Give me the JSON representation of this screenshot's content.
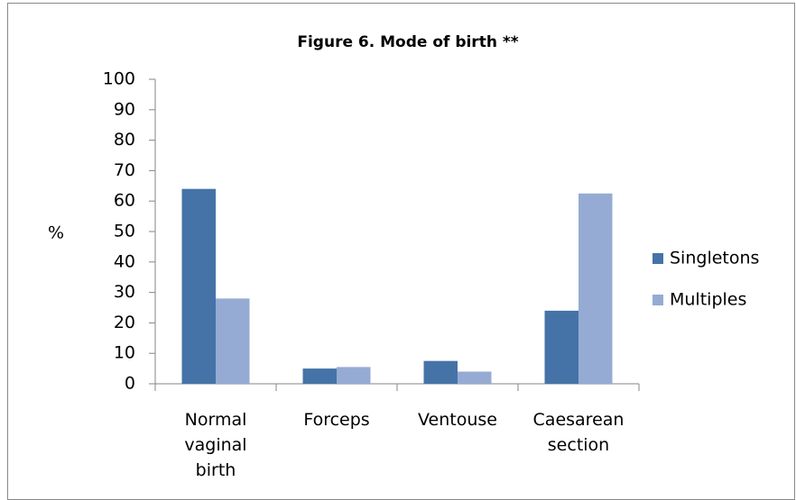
{
  "chart_data": {
    "type": "bar",
    "title": "Figure 6. Mode of birth **",
    "y_label": "%",
    "categories": [
      "Normal vaginal birth",
      "Forceps",
      "Ventouse",
      "Caesarean section"
    ],
    "series": [
      {
        "name": "Singletons",
        "color": "#4573a7",
        "values": [
          64,
          5,
          7.5,
          24
        ]
      },
      {
        "name": "Multiples",
        "color": "#95abd3",
        "values": [
          28,
          5.5,
          4,
          62.5
        ]
      }
    ],
    "ylim": [
      0,
      100
    ],
    "yticks": [
      0,
      10,
      20,
      30,
      40,
      50,
      60,
      70,
      80,
      90,
      100
    ],
    "legend": "right"
  }
}
